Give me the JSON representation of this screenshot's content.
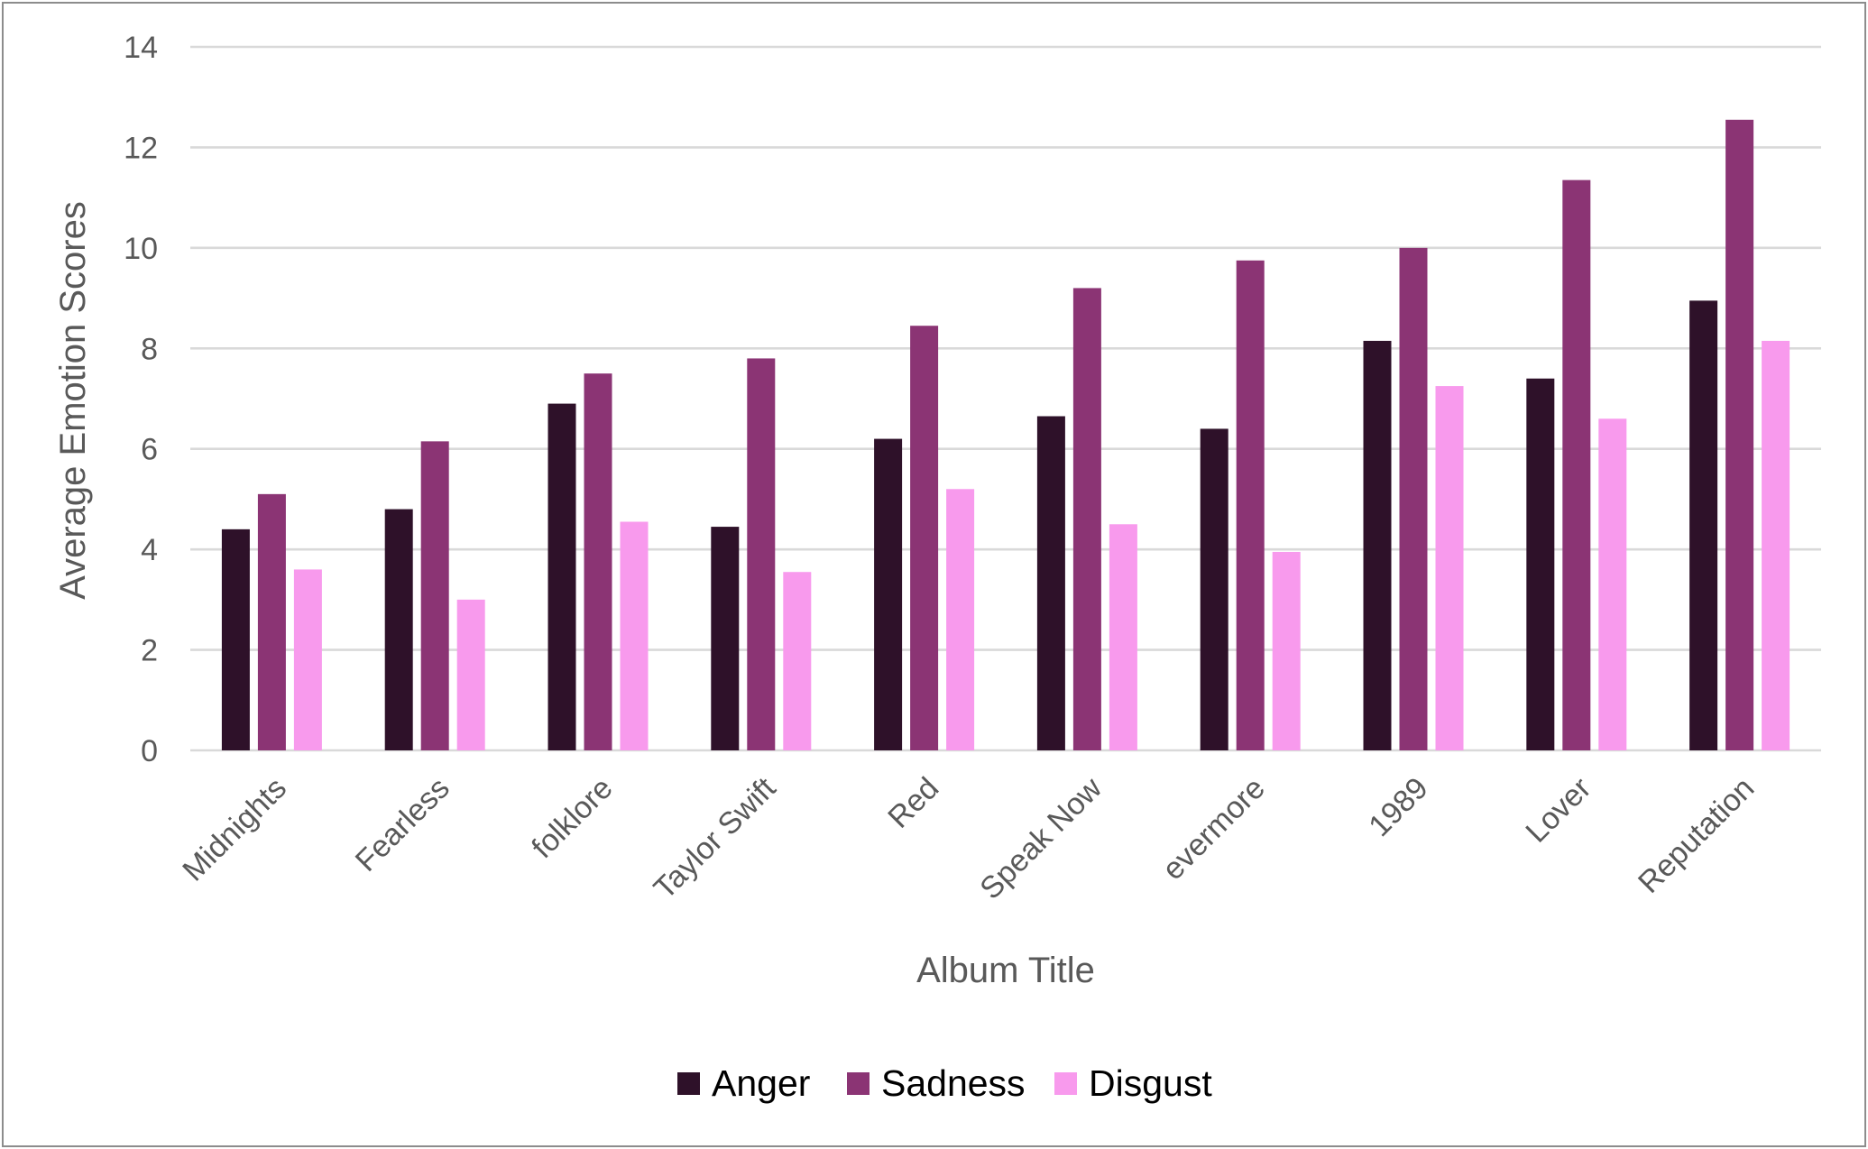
{
  "chart_data": {
    "type": "bar",
    "title": "",
    "xlabel": "Album Title",
    "ylabel": "Average Emotion Scores",
    "ylim": [
      0,
      14
    ],
    "yticks": [
      0,
      2,
      4,
      6,
      8,
      10,
      12,
      14
    ],
    "grid": true,
    "legend_position": "bottom",
    "categories": [
      "Midnights",
      "Fearless",
      "folklore",
      "Taylor Swift",
      "Red",
      "Speak Now",
      "evermore",
      "1989",
      "Lover",
      "Reputation"
    ],
    "series": [
      {
        "name": "Anger",
        "color": "#2e1129",
        "values": [
          4.4,
          4.8,
          6.9,
          4.45,
          6.2,
          6.65,
          6.4,
          8.15,
          7.4,
          8.95
        ]
      },
      {
        "name": "Sadness",
        "color": "#8b3474",
        "values": [
          5.1,
          6.15,
          7.5,
          7.8,
          8.45,
          9.2,
          9.75,
          10.0,
          11.35,
          12.55
        ]
      },
      {
        "name": "Disgust",
        "color": "#f89aed",
        "values": [
          3.6,
          3.0,
          4.55,
          3.55,
          5.2,
          4.5,
          3.95,
          7.25,
          6.6,
          8.15
        ]
      }
    ]
  }
}
